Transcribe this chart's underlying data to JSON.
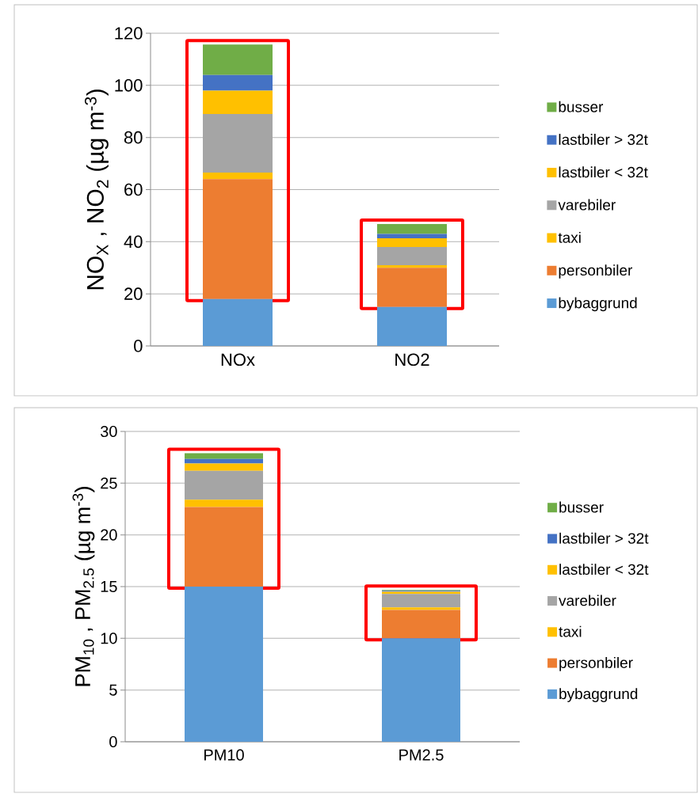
{
  "chart_data": [
    {
      "type": "bar",
      "stacked": true,
      "categories": [
        "NOx",
        "NO2"
      ],
      "ylabel": "NO$_{X}$ , NO$_{2}$ (µg m$^{-3}$)",
      "ylim": [
        0,
        120
      ],
      "yticks": [
        0,
        20,
        40,
        60,
        80,
        100,
        120
      ],
      "grid": "y",
      "legend": "right",
      "series": [
        {
          "name": "bybaggrund",
          "color": "#5b9bd5",
          "values": [
            18,
            15
          ]
        },
        {
          "name": "personbiler",
          "color": "#ed7d31",
          "values": [
            46,
            15
          ]
        },
        {
          "name": "taxi",
          "color": "#ffc000",
          "values": [
            2.5,
            1
          ]
        },
        {
          "name": "varebiler",
          "color": "#a5a5a5",
          "values": [
            22.5,
            7
          ]
        },
        {
          "name": "lastbiler < 32t",
          "color": "#ffc000",
          "values": [
            9,
            3.3
          ]
        },
        {
          "name": "lastbiler > 32t",
          "color": "#4472c4",
          "values": [
            6,
            1.7
          ]
        },
        {
          "name": "busser",
          "color": "#70ad47",
          "values": [
            11.7,
            3.8
          ]
        }
      ]
    },
    {
      "type": "bar",
      "stacked": true,
      "categories": [
        "PM10",
        "PM2.5"
      ],
      "ylabel": "PM$_{10}$ , PM$_{2.5}$ (µg m$^{-3}$)",
      "ylim": [
        0,
        30
      ],
      "yticks": [
        0,
        5,
        10,
        15,
        20,
        25,
        30
      ],
      "grid": "y",
      "legend": "right",
      "series": [
        {
          "name": "bybaggrund",
          "color": "#5b9bd5",
          "values": [
            15,
            10
          ]
        },
        {
          "name": "personbiler",
          "color": "#ed7d31",
          "values": [
            7.7,
            2.75
          ]
        },
        {
          "name": "taxi",
          "color": "#ffc000",
          "values": [
            0.7,
            0.25
          ]
        },
        {
          "name": "varebiler",
          "color": "#a5a5a5",
          "values": [
            2.8,
            1.3
          ]
        },
        {
          "name": "lastbiler < 32t",
          "color": "#ffc000",
          "values": [
            0.7,
            0.2
          ]
        },
        {
          "name": "lastbiler > 32t",
          "color": "#4472c4",
          "values": [
            0.45,
            0.1
          ]
        },
        {
          "name": "busser",
          "color": "#70ad47",
          "values": [
            0.55,
            0.07
          ]
        }
      ]
    }
  ]
}
